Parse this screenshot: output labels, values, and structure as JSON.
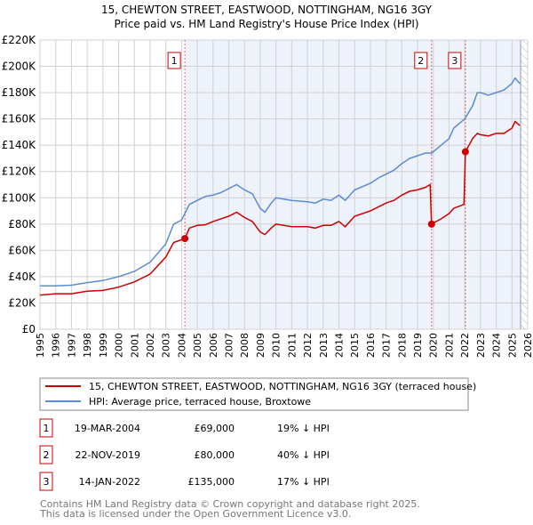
{
  "chart_data": {
    "type": "line",
    "title": "15, CHEWTON STREET, EASTWOOD, NOTTINGHAM, NG16 3GY",
    "subtitle": "Price paid vs. HM Land Registry's House Price Index (HPI)",
    "xlabel": "",
    "ylabel": "",
    "xlim": [
      1995,
      2026
    ],
    "ylim": [
      0,
      220000
    ],
    "x_ticks": [
      "1995",
      "1996",
      "1997",
      "1998",
      "1999",
      "2000",
      "2001",
      "2002",
      "2003",
      "2004",
      "2005",
      "2006",
      "2007",
      "2008",
      "2009",
      "2010",
      "2011",
      "2012",
      "2013",
      "2014",
      "2015",
      "2016",
      "2017",
      "2018",
      "2019",
      "2020",
      "2021",
      "2022",
      "2023",
      "2024",
      "2025",
      "2026"
    ],
    "y_ticks": [
      {
        "value": 0,
        "label": "£0"
      },
      {
        "value": 20000,
        "label": "£20K"
      },
      {
        "value": 40000,
        "label": "£40K"
      },
      {
        "value": 60000,
        "label": "£60K"
      },
      {
        "value": 80000,
        "label": "£80K"
      },
      {
        "value": 100000,
        "label": "£100K"
      },
      {
        "value": 120000,
        "label": "£120K"
      },
      {
        "value": 140000,
        "label": "£140K"
      },
      {
        "value": 160000,
        "label": "£160K"
      },
      {
        "value": 180000,
        "label": "£180K"
      },
      {
        "value": 200000,
        "label": "£200K"
      },
      {
        "value": 220000,
        "label": "£220K"
      }
    ],
    "grid": true,
    "shaded_range": [
      2004.21,
      2025.55
    ],
    "hatched_from": 2025.55,
    "series": [
      {
        "name": "15, CHEWTON STREET, EASTWOOD, NOTTINGHAM, NG16 3GY (terraced house)",
        "color": "#cc0000",
        "x": [
          1995,
          1996,
          1997,
          1998,
          1999,
          2000,
          2001,
          2002,
          2003,
          2003.5,
          2004.21,
          2004.5,
          2005,
          2005.5,
          2006,
          2006.5,
          2007,
          2007.5,
          2008,
          2008.5,
          2009,
          2009.3,
          2009.7,
          2010,
          2011,
          2012,
          2012.5,
          2013,
          2013.5,
          2014,
          2014.4,
          2015,
          2016,
          2016.5,
          2017,
          2017.5,
          2018,
          2018.5,
          2019,
          2019.5,
          2019.8,
          2019.89,
          2020.5,
          2021,
          2021.3,
          2021.95,
          2022.04,
          2022.5,
          2022.8,
          2023,
          2023.5,
          2024,
          2024.5,
          2025,
          2025.2,
          2025.5
        ],
        "y": [
          26000,
          27000,
          27000,
          29000,
          29500,
          32000,
          36000,
          42000,
          55000,
          66000,
          69000,
          77000,
          79000,
          79500,
          82000,
          84000,
          86000,
          89000,
          85000,
          82000,
          74000,
          72000,
          77000,
          80000,
          78000,
          78000,
          77000,
          79000,
          79000,
          82000,
          78000,
          86000,
          90000,
          93000,
          96000,
          98000,
          102000,
          105000,
          106000,
          108000,
          110000,
          80000,
          84000,
          88000,
          92000,
          95000,
          135000,
          145000,
          149000,
          148000,
          147000,
          149000,
          149000,
          153000,
          158000,
          155000
        ]
      },
      {
        "name": "HPI: Average price, terraced house, Broxtowe",
        "color": "#5b8bd0",
        "x": [
          1995,
          1996,
          1997,
          1998,
          1999,
          2000,
          2001,
          2002,
          2003,
          2003.5,
          2004,
          2004.5,
          2005,
          2005.5,
          2006,
          2006.5,
          2007,
          2007.5,
          2008,
          2008.5,
          2009,
          2009.3,
          2009.7,
          2010,
          2011,
          2012,
          2012.5,
          2013,
          2013.5,
          2014,
          2014.4,
          2015,
          2016,
          2016.5,
          2017,
          2017.5,
          2018,
          2018.5,
          2019,
          2019.5,
          2019.9,
          2020.5,
          2021,
          2021.3,
          2021.8,
          2022,
          2022.5,
          2022.8,
          2023,
          2023.5,
          2024,
          2024.5,
          2025,
          2025.2,
          2025.5
        ],
        "y": [
          33000,
          33000,
          33500,
          35500,
          37000,
          40000,
          44000,
          51000,
          65000,
          80000,
          83000,
          95000,
          98000,
          101000,
          102000,
          104000,
          107000,
          110000,
          106000,
          103000,
          92000,
          89000,
          96000,
          100000,
          98000,
          97000,
          96000,
          99000,
          98000,
          102000,
          98000,
          106000,
          111000,
          115000,
          118000,
          121000,
          126000,
          130000,
          132000,
          134000,
          134000,
          140000,
          145000,
          153000,
          158000,
          160000,
          170000,
          180000,
          180000,
          178000,
          180000,
          182000,
          187000,
          191000,
          187000
        ]
      }
    ],
    "annotations": [
      {
        "label": "1",
        "x": 2004.21,
        "y": 69000
      },
      {
        "label": "2",
        "x": 2019.89,
        "y": 80000
      },
      {
        "label": "3",
        "x": 2022.04,
        "y": 135000
      }
    ],
    "legend": {
      "placement": "bottom",
      "entries": [
        "15, CHEWTON STREET, EASTWOOD, NOTTINGHAM, NG16 3GY (terraced house)",
        "HPI: Average price, terraced house, Broxtowe"
      ]
    }
  },
  "transactions": [
    {
      "num": "1",
      "date": "19-MAR-2004",
      "price": "£69,000",
      "hpi": "19% ↓ HPI"
    },
    {
      "num": "2",
      "date": "22-NOV-2019",
      "price": "£80,000",
      "hpi": "40% ↓ HPI"
    },
    {
      "num": "3",
      "date": "14-JAN-2022",
      "price": "£135,000",
      "hpi": "17% ↓ HPI"
    }
  ],
  "footer": {
    "line1": "Contains HM Land Registry data © Crown copyright and database right 2025.",
    "line2": "This data is licensed under the Open Government Licence v3.0."
  }
}
